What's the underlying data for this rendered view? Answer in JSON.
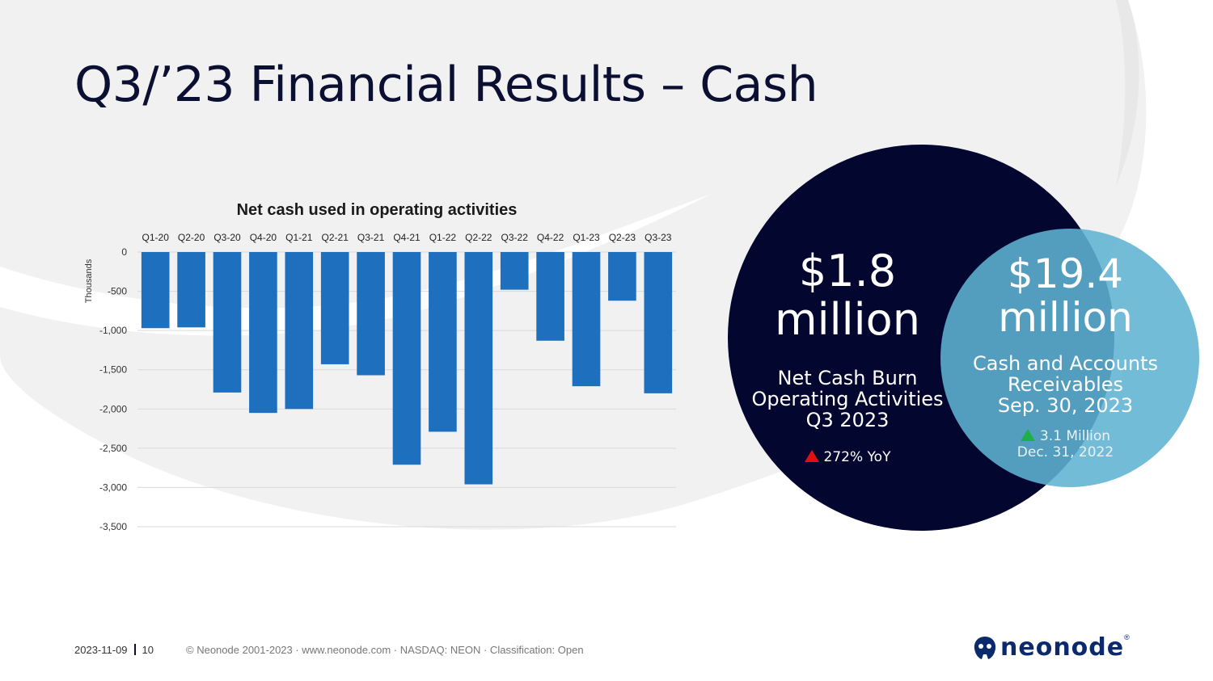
{
  "slide": {
    "title": "Q3/’23 Financial Results – Cash"
  },
  "chart_data": {
    "type": "bar",
    "title": "Net cash used in operating activities",
    "ylabel": "Thousands",
    "xlabel": "",
    "categories": [
      "Q1-20",
      "Q2-20",
      "Q3-20",
      "Q4-20",
      "Q1-21",
      "Q2-21",
      "Q3-21",
      "Q4-21",
      "Q1-22",
      "Q2-22",
      "Q3-22",
      "Q4-22",
      "Q1-23",
      "Q2-23",
      "Q3-23"
    ],
    "values": [
      -970,
      -960,
      -1790,
      -2050,
      -2000,
      -1430,
      -1570,
      -2710,
      -2290,
      -2960,
      -480,
      -1130,
      -1710,
      -620,
      -1800
    ],
    "ylim": [
      -3500,
      0
    ],
    "yticks": [
      0,
      -500,
      -1000,
      -1500,
      -2000,
      -2500,
      -3000,
      -3500
    ],
    "ytick_labels": [
      "0",
      "-500",
      "-1,000",
      "-1,500",
      "-2,000",
      "-2,500",
      "-3,000",
      "-3,500"
    ],
    "grid": true,
    "x_axis_position": "top",
    "bar_color": "#1f6fbf"
  },
  "cash_burn": {
    "value_line1": "$1.8",
    "value_line2": "million",
    "caption_line1": "Net Cash Burn",
    "caption_line2": "Operating Activities",
    "caption_line3": "Q3 2023",
    "change": "272% YoY",
    "change_color": "#e01010",
    "circle_color": "#03062e"
  },
  "cash_receivables": {
    "value_line1": "$19.4",
    "value_line2": "million",
    "caption_line1": "Cash and Accounts",
    "caption_line2": "Receivables",
    "caption_line3": "Sep. 30, 2023",
    "change": "3.1 Million",
    "change_date": "Dec. 31, 2022",
    "change_color": "#1fae4a",
    "circle_color": "#5fb3d3"
  },
  "footer": {
    "date": "2023-11-09",
    "page": "10",
    "copyright": "© Neonode 2001-2023  ·  www.neonode.com  ·  NASDAQ: NEON ·  Classification:   Open"
  },
  "logo": {
    "text": "neonode",
    "reg": "®",
    "icon": "neonode-logo-icon"
  }
}
